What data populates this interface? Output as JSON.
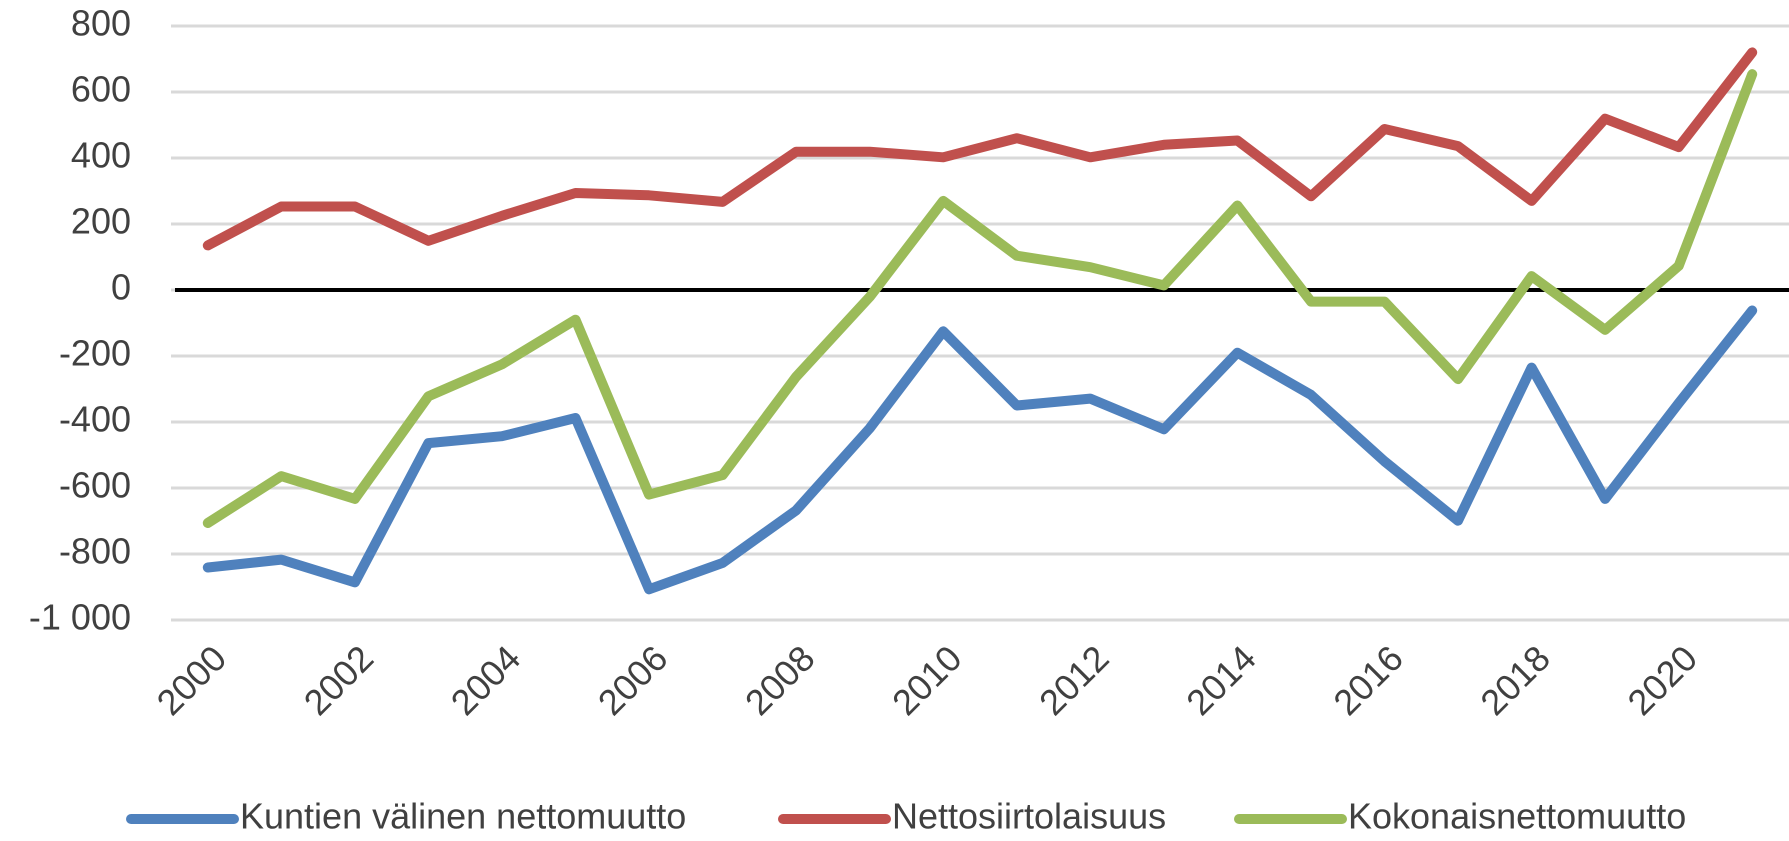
{
  "chart_data": {
    "type": "line",
    "categories": [
      "2000",
      null,
      "2002",
      null,
      "2004",
      null,
      "2006",
      null,
      "2008",
      null,
      "2010",
      null,
      "2012",
      null,
      "2014",
      null,
      "2016",
      null,
      "2018",
      null,
      "2020",
      null
    ],
    "series": [
      {
        "name": "Kuntien välinen nettomuutto",
        "color": "#4f81bd",
        "values": [
          -841,
          -817,
          -886,
          -464,
          -443,
          -388,
          -907,
          -827,
          -668,
          -419,
          -125,
          -350,
          -329,
          -422,
          -190,
          -318,
          -519,
          -699,
          -235,
          -633,
          -343,
          -62
        ]
      },
      {
        "name": "Nettosiirtolaisuus",
        "color": "#c0504d",
        "values": [
          135,
          253,
          253,
          149,
          225,
          294,
          287,
          267,
          419,
          419,
          402,
          460,
          402,
          440,
          453,
          284,
          488,
          436,
          270,
          519,
          433,
          720
        ]
      },
      {
        "name": "Kokonaisnettomuutto",
        "color": "#9bbb59",
        "values": [
          -706,
          -564,
          -633,
          -322,
          -225,
          -90,
          -620,
          -561,
          -263,
          -21,
          270,
          104,
          69,
          14,
          256,
          -35,
          -35,
          -270,
          42,
          -121,
          73,
          654
        ]
      }
    ],
    "ylim": [
      -1000,
      800
    ],
    "yticks": [
      {
        "value": -1000,
        "label": "-1 000"
      },
      -800,
      -600,
      -400,
      -200,
      0,
      200,
      400,
      600,
      800
    ],
    "grid": true
  }
}
